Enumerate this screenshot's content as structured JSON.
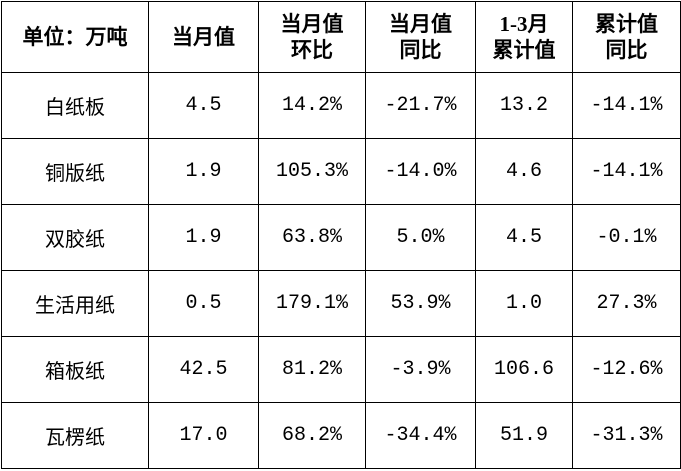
{
  "table": {
    "header": [
      [
        "单位：万吨"
      ],
      [
        "当月值"
      ],
      [
        "当月值",
        "环比"
      ],
      [
        "当月值",
        "同比"
      ],
      [
        "1-3月",
        "累计值"
      ],
      [
        "累计值",
        "同比"
      ]
    ],
    "rows": [
      [
        "白纸板",
        "4.5",
        "14.2%",
        "-21.7%",
        "13.2",
        "-14.1%"
      ],
      [
        "铜版纸",
        "1.9",
        "105.3%",
        "-14.0%",
        "4.6",
        "-14.1%"
      ],
      [
        "双胶纸",
        "1.9",
        "63.8%",
        "5.0%",
        "4.5",
        "-0.1%"
      ],
      [
        "生活用纸",
        "0.5",
        "179.1%",
        "53.9%",
        "1.0",
        "27.3%"
      ],
      [
        "箱板纸",
        "42.5",
        "81.2%",
        "-3.9%",
        "106.6",
        "-12.6%"
      ],
      [
        "瓦楞纸",
        "17.0",
        "68.2%",
        "-34.4%",
        "51.9",
        "-31.3%"
      ]
    ]
  }
}
